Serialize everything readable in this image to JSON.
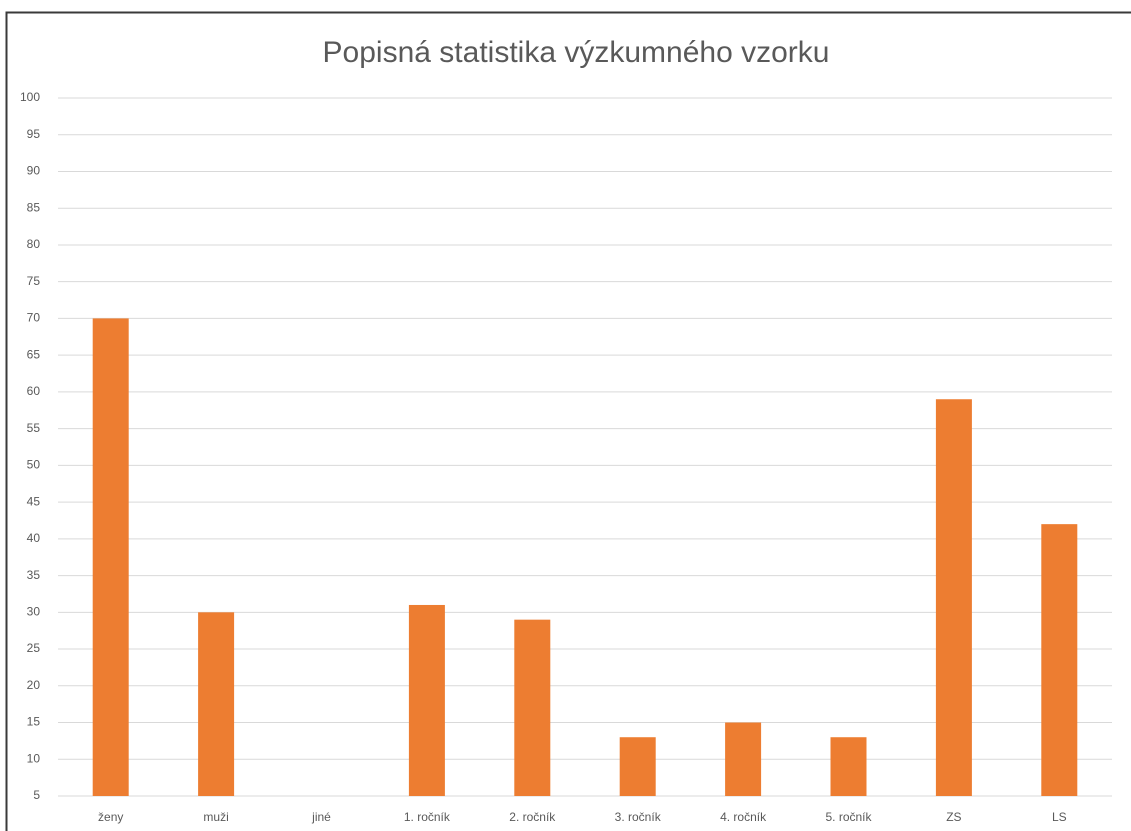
{
  "chart_data": {
    "type": "bar",
    "title": "Popisná statistika výzkumného vzorku",
    "categories": [
      "ženy",
      "muži",
      "jiné",
      "1. ročník",
      "2. ročník",
      "3. ročník",
      "4. ročník",
      "5. ročník",
      "ZS",
      "LS"
    ],
    "values": [
      70,
      30,
      1,
      31,
      29,
      13,
      15,
      13,
      59,
      42
    ],
    "color": "#ed7d31",
    "ylim": [
      5,
      100
    ],
    "yticks": [
      5,
      10,
      15,
      20,
      25,
      30,
      35,
      40,
      45,
      50,
      55,
      60,
      65,
      70,
      75,
      80,
      85,
      90,
      95,
      100
    ],
    "grid": true
  }
}
